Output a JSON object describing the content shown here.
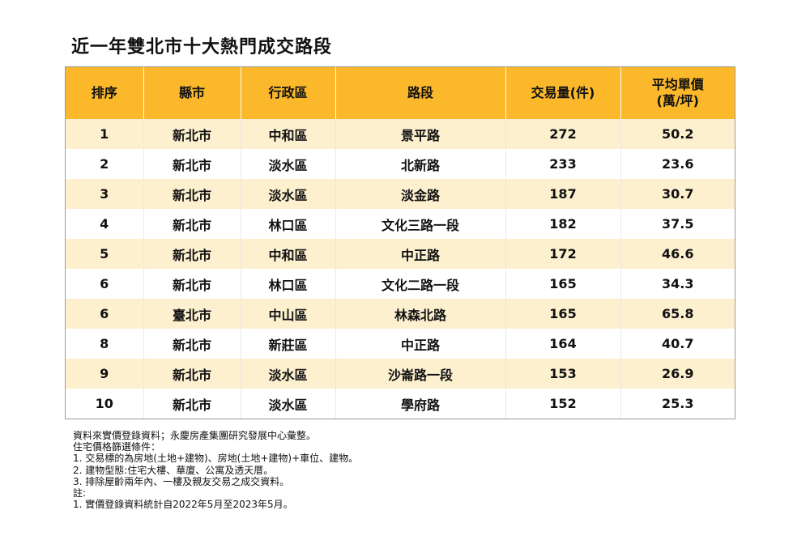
{
  "title": "近一年雙北市十大熱門成交路段",
  "headers": [
    "排序",
    "縣市",
    "行政區",
    "路段",
    "交易量(件)",
    "平均單價",
    "(萬/坪)"
  ],
  "rows": [
    [
      "1",
      "新北市",
      "中和區",
      "景平路",
      "272",
      "50.2"
    ],
    [
      "2",
      "新北市",
      "淡水區",
      "北新路",
      "233",
      "23.6"
    ],
    [
      "3",
      "新北市",
      "淡水區",
      "淡金路",
      "187",
      "30.7"
    ],
    [
      "4",
      "新北市",
      "林口區",
      "文化三路一段",
      "182",
      "37.5"
    ],
    [
      "5",
      "新北市",
      "中和區",
      "中正路",
      "172",
      "46.6"
    ],
    [
      "6",
      "新北市",
      "林口區",
      "文化二路一段",
      "165",
      "34.3"
    ],
    [
      "6",
      "臺北市",
      "中山區",
      "林森北路",
      "165",
      "65.8"
    ],
    [
      "8",
      "新北市",
      "新莊區",
      "中正路",
      "164",
      "40.7"
    ],
    [
      "9",
      "新北市",
      "淡水區",
      "沙崙路一段",
      "153",
      "26.9"
    ],
    [
      "10",
      "新北市",
      "淡水區",
      "學府路",
      "152",
      "25.3"
    ]
  ],
  "notes": [
    "資料來實價登錄資料；永慶房產集團研究發展中心彙整。",
    "住宅價格篩選條件：",
    "1. 交易標的為房地(土地+建物)、房地(土地+建物)+車位、建物。",
    "2. 建物型態:住宅大樓、華廈、公寓及透天厝。",
    "3. 排除屋齡兩年內、一樓及親友交易之成交資料。",
    "註:",
    "1. 實價登錄資料統計自2022年5月至2023年5月。"
  ],
  "colors": {
    "header_bg": "#fbb82a",
    "row_alt_bg": "#fdf0cf"
  }
}
